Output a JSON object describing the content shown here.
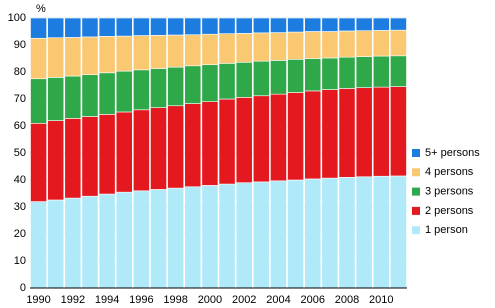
{
  "chart_data": {
    "type": "stacked_bar",
    "y_label": "%",
    "categories": [
      "1990",
      null,
      "1992",
      null,
      "1994",
      null,
      "1996",
      null,
      "1998",
      null,
      "2000",
      null,
      "2002",
      null,
      "2004",
      null,
      "2006",
      null,
      "2008",
      null,
      "2010",
      null
    ],
    "series": [
      {
        "name": "1 person",
        "color": "#b0eaf8",
        "values": [
          32.0,
          32.6,
          33.3,
          34.0,
          34.8,
          35.5,
          36.0,
          36.5,
          37.0,
          37.5,
          38.0,
          38.5,
          39.0,
          39.3,
          39.7,
          40.0,
          40.4,
          40.7,
          41.0,
          41.2,
          41.4,
          41.5
        ]
      },
      {
        "name": "2 persons",
        "color": "#e3191f",
        "values": [
          29.0,
          29.4,
          29.5,
          29.5,
          29.5,
          29.7,
          30.0,
          30.3,
          30.5,
          30.8,
          31.0,
          31.5,
          31.6,
          31.9,
          32.1,
          32.4,
          32.6,
          32.8,
          32.9,
          33.0,
          33.0,
          33.1
        ]
      },
      {
        "name": "3 persons",
        "color": "#2fa84a",
        "values": [
          16.5,
          16.0,
          15.7,
          15.5,
          15.4,
          15.1,
          14.8,
          14.5,
          14.3,
          14.0,
          13.7,
          13.2,
          13.0,
          12.8,
          12.5,
          12.3,
          12.0,
          11.7,
          11.6,
          11.5,
          11.5,
          11.4
        ]
      },
      {
        "name": "4 persons",
        "color": "#fbc872",
        "values": [
          15.0,
          14.7,
          14.3,
          14.0,
          13.5,
          13.0,
          12.7,
          12.3,
          11.9,
          11.5,
          11.3,
          11.0,
          10.7,
          10.5,
          10.3,
          10.1,
          10.0,
          9.8,
          9.7,
          9.6,
          9.5,
          9.5
        ]
      },
      {
        "name": "5+ persons",
        "color": "#1c7ce0",
        "values": [
          7.5,
          7.3,
          7.2,
          7.0,
          6.8,
          6.7,
          6.5,
          6.4,
          6.3,
          6.2,
          6.0,
          5.8,
          5.7,
          5.5,
          5.4,
          5.2,
          5.0,
          5.0,
          4.8,
          4.7,
          4.6,
          4.5
        ]
      }
    ],
    "ylim": [
      0,
      100
    ],
    "yticks": [
      0,
      10,
      20,
      30,
      40,
      50,
      60,
      70,
      80,
      90,
      100
    ],
    "grid": true,
    "legend": "right"
  }
}
